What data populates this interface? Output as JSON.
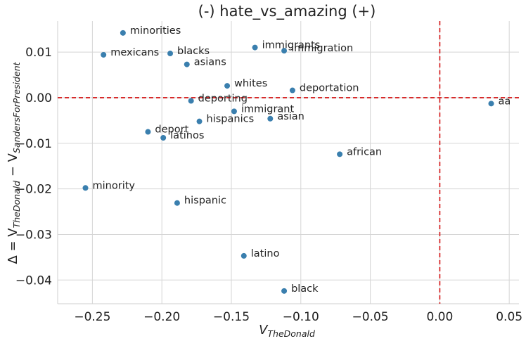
{
  "chart_data": {
    "type": "scatter",
    "title": "(-) hate_vs_amazing (+)",
    "xlabel": {
      "base": "V",
      "sub": "TheDonald"
    },
    "ylabel": {
      "prefix": "Δ = V",
      "sub1": "TheDonald",
      "middle": " − V",
      "sub2": "SandersForPresident"
    },
    "xlim": [
      -0.275,
      0.057
    ],
    "ylim": [
      -0.0452,
      0.0168
    ],
    "xticks": [
      -0.25,
      -0.2,
      -0.15,
      -0.1,
      -0.05,
      0.0,
      0.05
    ],
    "xtick_labels": [
      "−0.25",
      "−0.20",
      "−0.15",
      "−0.10",
      "−0.05",
      "0.00",
      "0.05"
    ],
    "yticks": [
      0.01,
      0.0,
      -0.01,
      -0.02,
      -0.03,
      -0.04
    ],
    "ytick_labels": [
      "0.01",
      "0.00",
      "−0.01",
      "−0.02",
      "−0.03",
      "−0.04"
    ],
    "grid": true,
    "ref_lines": {
      "x": 0.0,
      "y": 0.0,
      "color": "#d62728",
      "style": "dashed"
    },
    "marker_color": "#3a7fae",
    "points": [
      {
        "label": "minorities",
        "x": -0.228,
        "y": 0.0142
      },
      {
        "label": "mexicans",
        "x": -0.242,
        "y": 0.0094
      },
      {
        "label": "blacks",
        "x": -0.194,
        "y": 0.0097
      },
      {
        "label": "asians",
        "x": -0.182,
        "y": 0.0073
      },
      {
        "label": "immigrants",
        "x": -0.133,
        "y": 0.011
      },
      {
        "label": "immigration",
        "x": -0.112,
        "y": 0.0103
      },
      {
        "label": "whites",
        "x": -0.153,
        "y": 0.0026
      },
      {
        "label": "deportation",
        "x": -0.106,
        "y": 0.0016
      },
      {
        "label": "deporting",
        "x": -0.179,
        "y": -0.0007
      },
      {
        "label": "immigrant",
        "x": -0.148,
        "y": -0.003
      },
      {
        "label": "hispanics",
        "x": -0.173,
        "y": -0.0052
      },
      {
        "label": "asian",
        "x": -0.122,
        "y": -0.0046
      },
      {
        "label": "aa",
        "x": 0.037,
        "y": -0.0013
      },
      {
        "label": "deport",
        "x": -0.21,
        "y": -0.0075
      },
      {
        "label": "latinos",
        "x": -0.199,
        "y": -0.0088
      },
      {
        "label": "african",
        "x": -0.072,
        "y": -0.0124
      },
      {
        "label": "minority",
        "x": -0.255,
        "y": -0.0198
      },
      {
        "label": "hispanic",
        "x": -0.189,
        "y": -0.0231
      },
      {
        "label": "latino",
        "x": -0.141,
        "y": -0.0347
      },
      {
        "label": "black",
        "x": -0.112,
        "y": -0.0424
      }
    ]
  }
}
